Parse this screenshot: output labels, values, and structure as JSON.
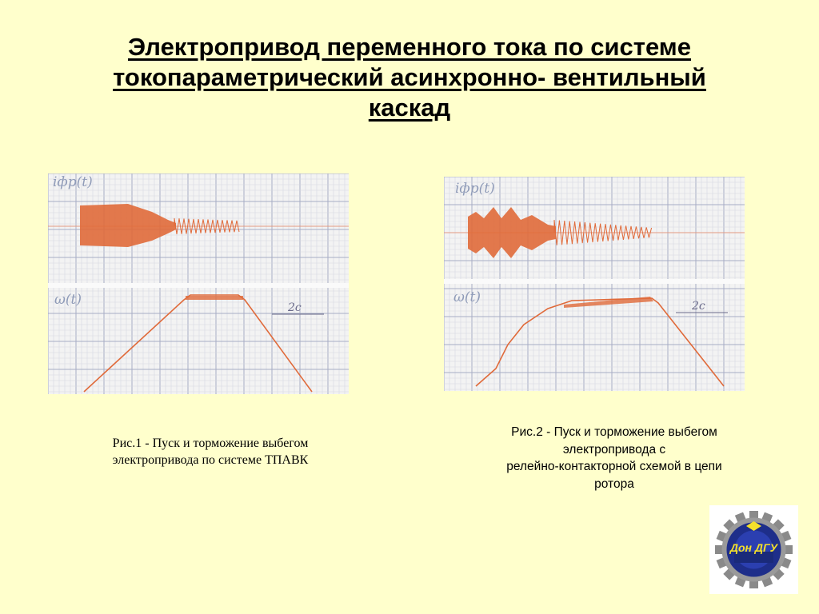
{
  "title": {
    "line1": "Электропривод переменного тока по системе",
    "line2": "токопараметрический асинхронно- вентильный",
    "line3": "каскад"
  },
  "figure1": {
    "top_label": "iфр(t)",
    "bottom_label": "ω(t)",
    "scale_label": "2с",
    "caption_line1": "Рис.1 -  Пуск и торможение выбегом",
    "caption_line2": "электропривода по системе ТПАВК"
  },
  "figure2": {
    "top_label": "iфр(t)",
    "bottom_label": "ω(t)",
    "scale_label": "2с",
    "caption_line1": "Рис.2 - Пуск и торможение выбегом",
    "caption_line2": "электропривода с",
    "caption_line3": "релейно-контакторной схемой в цепи",
    "caption_line4": "ротора"
  },
  "logo": {
    "text": "Дон ДГУ",
    "icon": "university-gear-emblem"
  },
  "colors": {
    "background": "#ffffcc",
    "trace": "#e06a3a",
    "grid": "#9aa0b8",
    "paper": "#f3f3f3"
  }
}
